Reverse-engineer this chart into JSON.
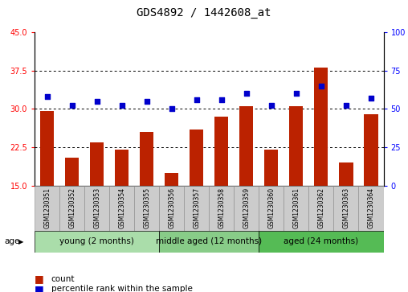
{
  "title": "GDS4892 / 1442608_at",
  "samples": [
    "GSM1230351",
    "GSM1230352",
    "GSM1230353",
    "GSM1230354",
    "GSM1230355",
    "GSM1230356",
    "GSM1230357",
    "GSM1230358",
    "GSM1230359",
    "GSM1230360",
    "GSM1230361",
    "GSM1230362",
    "GSM1230363",
    "GSM1230364"
  ],
  "counts": [
    29.5,
    20.5,
    23.5,
    22.0,
    25.5,
    17.5,
    26.0,
    28.5,
    30.5,
    22.0,
    30.5,
    38.0,
    19.5,
    29.0
  ],
  "percentiles": [
    58,
    52,
    55,
    52,
    55,
    50,
    56,
    56,
    60,
    52,
    60,
    65,
    52,
    57
  ],
  "ylim_left": [
    15,
    45
  ],
  "ylim_right": [
    0,
    100
  ],
  "yticks_left": [
    15,
    22.5,
    30,
    37.5,
    45
  ],
  "yticks_right": [
    0,
    25,
    50,
    75,
    100
  ],
  "bar_color": "#bb2200",
  "dot_color": "#0000cc",
  "group_labels": [
    "young (2 months)",
    "middle aged (12 months)",
    "aged (24 months)"
  ],
  "group_ranges": [
    [
      0,
      5
    ],
    [
      5,
      9
    ],
    [
      9,
      14
    ]
  ],
  "group_colors": [
    "#aaddaa",
    "#88cc88",
    "#55bb55"
  ],
  "sample_bg": "#cccccc",
  "plot_bg": "#ffffff",
  "title_fontsize": 10,
  "tick_fontsize": 7,
  "sample_fontsize": 5.5,
  "group_fontsize": 7.5,
  "legend_fontsize": 7.5,
  "bar_width": 0.55
}
